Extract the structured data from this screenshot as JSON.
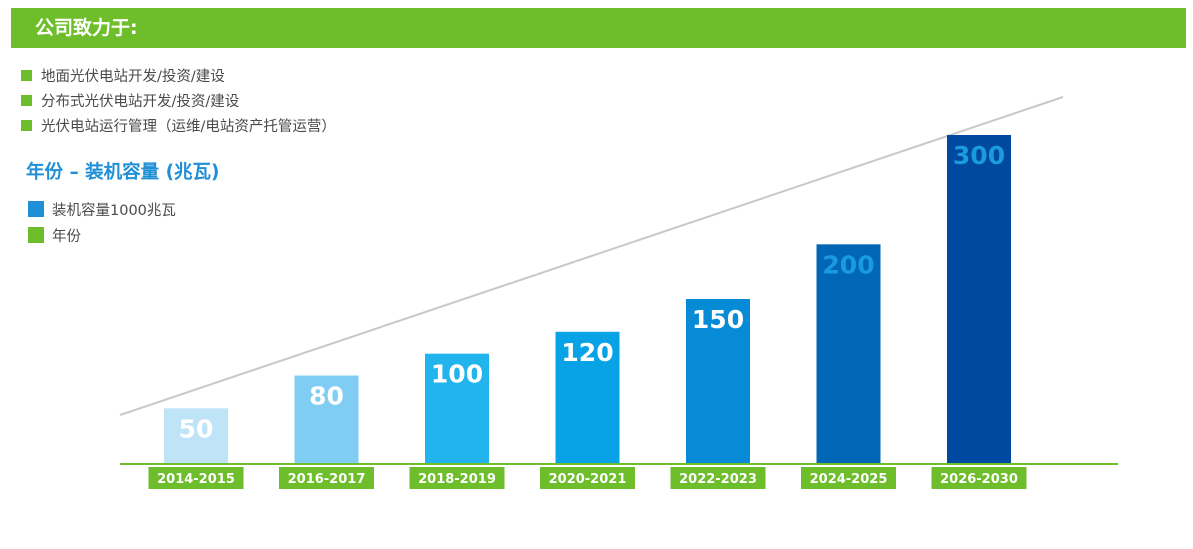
{
  "header": {
    "title": "公司致力于:"
  },
  "bullets": [
    "地面光伏电站开发/投资/建设",
    "分布式光伏电站开发/投资/建设",
    "光伏电站运行管理（运维/电站资产托管运营）"
  ],
  "colors": {
    "accent_green": "#6ebe2b",
    "legend_blue": "#1f8fd6",
    "trend_line": "#c8c8c8",
    "value_light": "#ffffff",
    "value_dark": "#1a9bdf"
  },
  "chart_data": {
    "type": "bar",
    "title": "年份 – 装机容量 (兆瓦)",
    "legend": [
      {
        "label": "装机容量1000兆瓦",
        "color": "#1f8fd6"
      },
      {
        "label": "年份",
        "color": "#6ebe2b"
      }
    ],
    "categories": [
      "2014-2015",
      "2016-2017",
      "2018-2019",
      "2020-2021",
      "2022-2023",
      "2024-2025",
      "2026-2030"
    ],
    "values": [
      50,
      80,
      100,
      120,
      150,
      200,
      300
    ],
    "bar_colors": [
      "#bfe3f7",
      "#80cdf3",
      "#22b4ec",
      "#08a3e6",
      "#088bd6",
      "#0066b5",
      "#0049a0"
    ],
    "value_label_colors": [
      "#ffffff",
      "#ffffff",
      "#ffffff",
      "#ffffff",
      "#ffffff",
      "#1a9bdf",
      "#1a9bdf"
    ],
    "ylim": [
      0,
      300
    ],
    "trend_line": true,
    "grid": false
  }
}
